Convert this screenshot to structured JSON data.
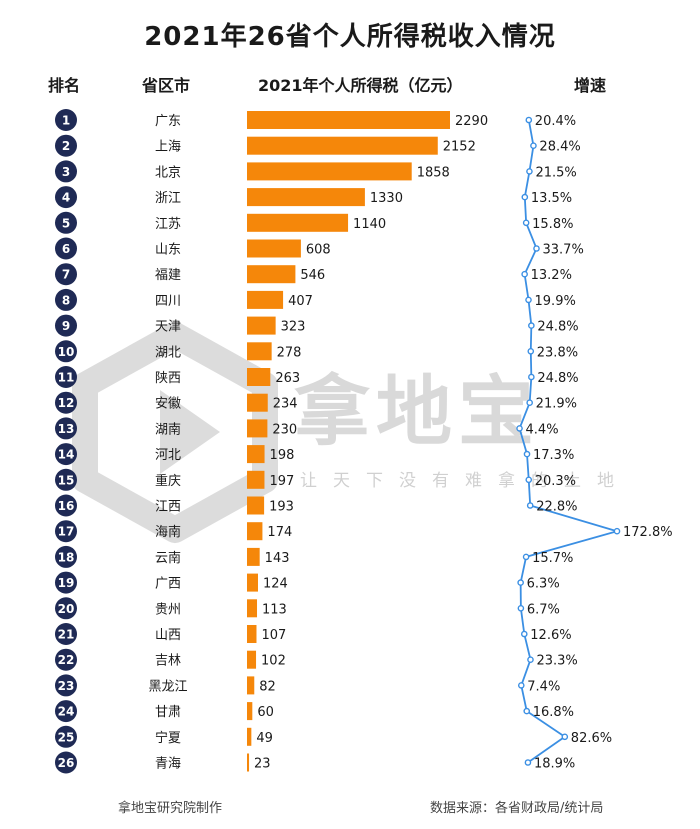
{
  "title": "2021年26省个人所得税收入情况",
  "headers": {
    "rank": "排名",
    "province": "省区市",
    "tax": "2021年个人所得税（亿元）",
    "growth": "增速"
  },
  "footer": {
    "left": "拿地宝研究院制作",
    "right": "数据来源：各省财政局/统计局"
  },
  "watermark": {
    "text": "拿地宝",
    "slogan": "让天下没有难拿的土地"
  },
  "colors": {
    "bar": "#F5870A",
    "line": "#3B8FE3",
    "rank_circle": "#1F2A55"
  },
  "chart_data": {
    "type": "bar",
    "orientation": "horizontal",
    "title": "2021年个人所得税（亿元）",
    "categories": [
      "广东",
      "上海",
      "北京",
      "浙江",
      "江苏",
      "山东",
      "福建",
      "四川",
      "天津",
      "湖北",
      "陕西",
      "安徽",
      "湖南",
      "河北",
      "重庆",
      "江西",
      "海南",
      "云南",
      "广西",
      "贵州",
      "山西",
      "吉林",
      "黑龙江",
      "甘肃",
      "宁夏",
      "青海"
    ],
    "ranks": [
      "1",
      "2",
      "3",
      "4",
      "5",
      "6",
      "7",
      "8",
      "9",
      "10",
      "11",
      "12",
      "13",
      "14",
      "15",
      "16",
      "17",
      "18",
      "19",
      "20",
      "21",
      "22",
      "23",
      "24",
      "25",
      "26"
    ],
    "values": [
      2290,
      2152,
      1858,
      1330,
      1140,
      608,
      546,
      407,
      323,
      278,
      263,
      234,
      230,
      198,
      197,
      193,
      174,
      143,
      124,
      113,
      107,
      102,
      82,
      60,
      49,
      23
    ],
    "growth": {
      "type": "line",
      "name": "增速",
      "values": [
        20.4,
        28.4,
        21.5,
        13.5,
        15.8,
        33.7,
        13.2,
        19.9,
        24.8,
        23.8,
        24.8,
        21.9,
        4.4,
        17.3,
        20.3,
        22.8,
        172.8,
        15.7,
        6.3,
        6.7,
        12.6,
        23.3,
        7.4,
        16.8,
        82.6,
        18.9
      ],
      "labels": [
        "20.4%",
        "28.4%",
        "21.5%",
        "13.5%",
        "15.8%",
        "33.7%",
        "13.2%",
        "19.9%",
        "24.8%",
        "23.8%",
        "24.8%",
        "21.9%",
        "4.4%",
        "17.3%",
        "20.3%",
        "22.8%",
        "172.8%",
        "15.7%",
        "6.3%",
        "6.7%",
        "12.6%",
        "23.3%",
        "7.4%",
        "16.8%",
        "82.6%",
        "18.9%"
      ]
    }
  }
}
